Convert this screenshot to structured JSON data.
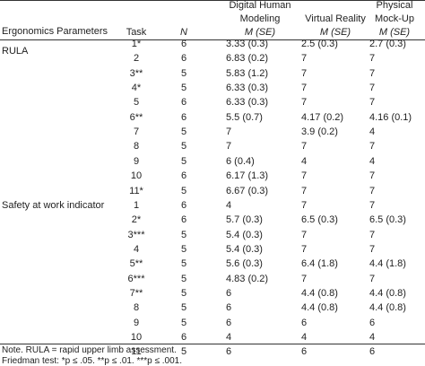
{
  "table": {
    "columns": [
      "Ergonomics Parameters",
      "Task",
      "N",
      "Digital Human Modeling",
      "Virtual Reality",
      "Physical Mock-Up"
    ],
    "subheader": [
      "M (SE)",
      "M (SE)",
      "M (SE)"
    ],
    "groups": [
      {
        "label": "RULA",
        "rows": [
          [
            "1*",
            "6",
            "3.33 (0.3)",
            "2.5 (0.3)",
            "2.7 (0.3)"
          ],
          [
            "2",
            "6",
            "6.83 (0.2)",
            "7",
            "7"
          ],
          [
            "3**",
            "5",
            "5.83 (1.2)",
            "7",
            "7"
          ],
          [
            "4*",
            "5",
            "6.33 (0.3)",
            "7",
            "7"
          ],
          [
            "5",
            "6",
            "6.33 (0.3)",
            "7",
            "7"
          ],
          [
            "6**",
            "6",
            "5.5 (0.7)",
            "4.17 (0.2)",
            "4.16 (0.1)"
          ],
          [
            "7",
            "5",
            "7",
            "3.9 (0.2)",
            "4"
          ],
          [
            "8",
            "5",
            "7",
            "7",
            "7"
          ],
          [
            "9",
            "5",
            "6 (0.4)",
            "4",
            "4"
          ],
          [
            "10",
            "6",
            "6.17 (1.3)",
            "7",
            "7"
          ],
          [
            "11*",
            "5",
            "6.67 (0.3)",
            "7",
            "7"
          ]
        ]
      },
      {
        "label": "Safety at work indicator",
        "rows": [
          [
            "1",
            "6",
            "4",
            "7",
            "7"
          ],
          [
            "2*",
            "6",
            "5.7 (0.3)",
            "6.5 (0.3)",
            "6.5 (0.3)"
          ],
          [
            "3***",
            "5",
            "5.4 (0.3)",
            "7",
            "7"
          ],
          [
            "4",
            "5",
            "5.4 (0.3)",
            "7",
            "7"
          ],
          [
            "5**",
            "5",
            "5.6 (0.3)",
            "6.4 (1.8)",
            "4.4 (1.8)"
          ],
          [
            "6***",
            "5",
            "4.83 (0.2)",
            "7",
            "7"
          ],
          [
            "7**",
            "5",
            "6",
            "4.4 (0.8)",
            "4.4 (0.8)"
          ],
          [
            "8",
            "5",
            "6",
            "4.4 (0.8)",
            "4.4 (0.8)"
          ],
          [
            "9",
            "5",
            "6",
            "6",
            "6"
          ],
          [
            "10",
            "6",
            "4",
            "4",
            "4"
          ],
          [
            "11",
            "5",
            "6",
            "6",
            "6"
          ]
        ]
      }
    ]
  },
  "notes": [
    "Note. RULA = rapid upper limb assessment.",
    "Friedman test: *p ≤ .05. **p ≤ .01. ***p ≤ .001."
  ]
}
